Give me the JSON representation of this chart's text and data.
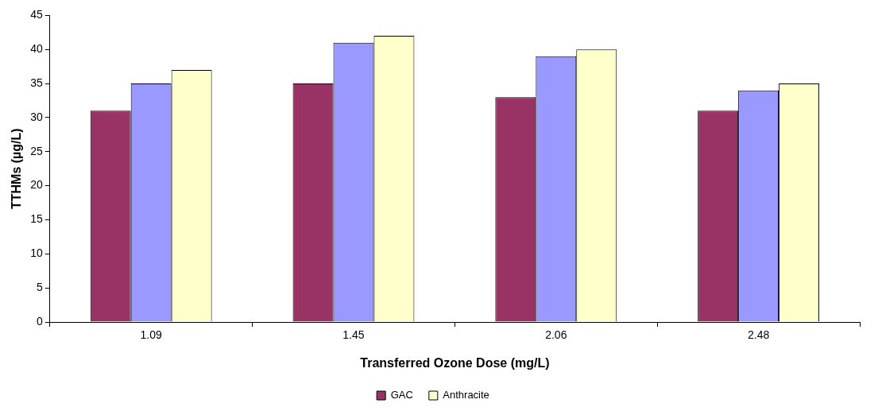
{
  "chart_data": {
    "type": "bar",
    "xlabel": "Transferred Ozone Dose (mg/L)",
    "ylabel": "TTHMs (µg/L)",
    "categories": [
      "1.09",
      "1.45",
      "2.06",
      "2.48"
    ],
    "series": [
      {
        "name": "GAC",
        "color": "#993366",
        "values": [
          31,
          35,
          33,
          31
        ]
      },
      {
        "color": "#9999ff",
        "values": [
          35,
          41,
          39,
          34
        ]
      },
      {
        "name": "Anthracite",
        "color": "#ffffcc",
        "values": [
          37,
          42,
          40,
          35
        ]
      }
    ],
    "ylim": [
      0,
      45
    ],
    "yticks": [
      0,
      5,
      10,
      15,
      20,
      25,
      30,
      35,
      40,
      45
    ],
    "grid": false,
    "legend": "bottom"
  }
}
